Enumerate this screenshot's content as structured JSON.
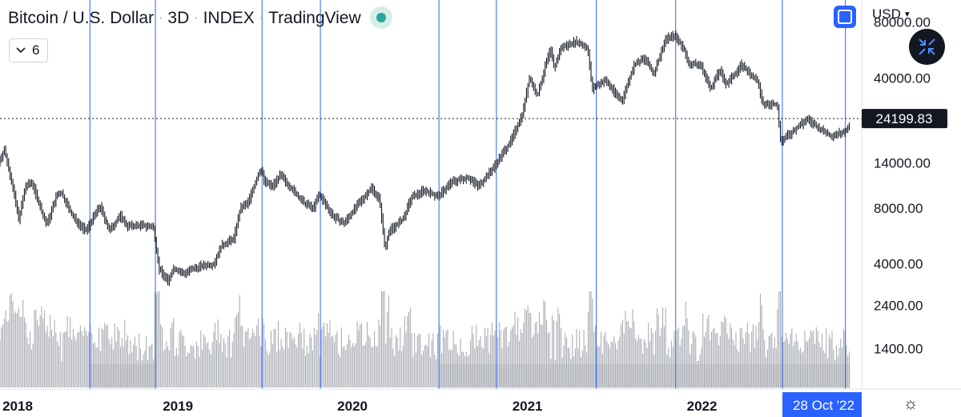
{
  "header": {
    "symbol": "Bitcoin / U.S. Dollar",
    "interval": "3D",
    "exchange": "INDEX",
    "source": "TradingView",
    "separator": "·"
  },
  "indicator_toggle": {
    "count": "6"
  },
  "currency": {
    "label": "USD"
  },
  "icons": {
    "chevron": "chevron-down-icon",
    "market_status": "live-dot-icon",
    "layout": "square-icon",
    "collapse": "collapse-arrows-icon",
    "settings": "settings-sun-icon"
  },
  "colors": {
    "candles": "#131722",
    "volume": "#a3a6ad",
    "volume_band": "#e6e7ea",
    "vertical_lines": "#2962ff",
    "price_line": "#131722",
    "price_label_bg": "#131722",
    "date_label_bg": "#2962ff"
  },
  "chart_data": {
    "type": "line",
    "title": "Bitcoin / U.S. Dollar",
    "xlabel": "",
    "ylabel": "",
    "y_scale": "log",
    "ylim": [
      850,
      105000
    ],
    "x_range": [
      "2017-12-25",
      "2022-12-01"
    ],
    "x_ticks": [
      {
        "date": "2018-01-01",
        "label": "2018"
      },
      {
        "date": "2019-01-01",
        "label": "2019"
      },
      {
        "date": "2020-01-01",
        "label": "2020"
      },
      {
        "date": "2021-01-01",
        "label": "2021"
      },
      {
        "date": "2022-01-01",
        "label": "2022"
      }
    ],
    "y_ticks": [
      {
        "value": 80000,
        "label": "80000.00"
      },
      {
        "value": 40000,
        "label": "40000.00"
      },
      {
        "value": 14000,
        "label": "14000.00"
      },
      {
        "value": 8000,
        "label": "8000.00"
      },
      {
        "value": 4000,
        "label": "4000.00"
      },
      {
        "value": 2400,
        "label": "2400.00"
      },
      {
        "value": 1400,
        "label": "1400.00"
      }
    ],
    "last_price": {
      "value": 24199.83,
      "label": "24199.83"
    },
    "crosshair_date_label": "28 Oct '22",
    "vertical_markers": [
      "2018-07-01",
      "2018-11-15",
      "2019-06-26",
      "2019-10-26",
      "2020-06-30",
      "2020-10-28",
      "2021-05-25",
      "2021-11-07",
      "2022-06-18",
      "2022-10-28"
    ],
    "series": [
      {
        "name": "Bitcoin / U.S. Dollar",
        "points": [
          [
            "2017-12-25",
            14000
          ],
          [
            "2018-01-06",
            16500
          ],
          [
            "2018-01-20",
            11500
          ],
          [
            "2018-02-05",
            7000
          ],
          [
            "2018-02-20",
            10500
          ],
          [
            "2018-03-05",
            11000
          ],
          [
            "2018-03-30",
            7000
          ],
          [
            "2018-04-06",
            6600
          ],
          [
            "2018-04-25",
            9300
          ],
          [
            "2018-05-05",
            9700
          ],
          [
            "2018-05-29",
            7200
          ],
          [
            "2018-06-25",
            6000
          ],
          [
            "2018-07-25",
            8200
          ],
          [
            "2018-08-14",
            6000
          ],
          [
            "2018-09-05",
            7300
          ],
          [
            "2018-09-20",
            6400
          ],
          [
            "2018-10-20",
            6450
          ],
          [
            "2018-11-14",
            6300
          ],
          [
            "2018-11-25",
            3800
          ],
          [
            "2018-12-15",
            3200
          ],
          [
            "2018-12-25",
            3800
          ],
          [
            "2019-01-15",
            3550
          ],
          [
            "2019-02-20",
            3900
          ],
          [
            "2019-03-20",
            4000
          ],
          [
            "2019-04-05",
            5000
          ],
          [
            "2019-05-01",
            5500
          ],
          [
            "2019-05-15",
            8000
          ],
          [
            "2019-05-30",
            8500
          ],
          [
            "2019-06-26",
            13000
          ],
          [
            "2019-07-05",
            11000
          ],
          [
            "2019-07-20",
            10500
          ],
          [
            "2019-08-06",
            12000
          ],
          [
            "2019-09-01",
            10000
          ],
          [
            "2019-09-24",
            8500
          ],
          [
            "2019-10-15",
            8000
          ],
          [
            "2019-10-26",
            9500
          ],
          [
            "2019-11-25",
            7200
          ],
          [
            "2019-12-17",
            6600
          ],
          [
            "2020-01-10",
            8000
          ],
          [
            "2020-02-13",
            10300
          ],
          [
            "2020-03-01",
            8800
          ],
          [
            "2020-03-12",
            4800
          ],
          [
            "2020-03-20",
            6000
          ],
          [
            "2020-04-20",
            7000
          ],
          [
            "2020-05-05",
            9000
          ],
          [
            "2020-06-01",
            10000
          ],
          [
            "2020-07-01",
            9200
          ],
          [
            "2020-07-28",
            11000
          ],
          [
            "2020-09-01",
            11700
          ],
          [
            "2020-09-24",
            10500
          ],
          [
            "2020-10-21",
            12800
          ],
          [
            "2020-11-15",
            16000
          ],
          [
            "2020-12-01",
            18500
          ],
          [
            "2020-12-25",
            26000
          ],
          [
            "2021-01-08",
            40000
          ],
          [
            "2021-01-25",
            32000
          ],
          [
            "2021-02-10",
            46000
          ],
          [
            "2021-02-21",
            57000
          ],
          [
            "2021-03-01",
            45000
          ],
          [
            "2021-03-15",
            58000
          ],
          [
            "2021-04-14",
            63000
          ],
          [
            "2021-05-10",
            58000
          ],
          [
            "2021-05-19",
            35000
          ],
          [
            "2021-06-15",
            39000
          ],
          [
            "2021-07-20",
            30000
          ],
          [
            "2021-08-15",
            47000
          ],
          [
            "2021-09-06",
            51000
          ],
          [
            "2021-09-25",
            42000
          ],
          [
            "2021-10-20",
            65000
          ],
          [
            "2021-11-08",
            68000
          ],
          [
            "2021-11-28",
            57000
          ],
          [
            "2021-12-05",
            48000
          ],
          [
            "2022-01-01",
            47000
          ],
          [
            "2022-01-22",
            35000
          ],
          [
            "2022-02-10",
            44000
          ],
          [
            "2022-02-24",
            37000
          ],
          [
            "2022-03-28",
            47000
          ],
          [
            "2022-05-01",
            38000
          ],
          [
            "2022-05-10",
            29000
          ],
          [
            "2022-06-10",
            29000
          ],
          [
            "2022-06-18",
            18000
          ],
          [
            "2022-07-01",
            19500
          ],
          [
            "2022-08-12",
            24000
          ],
          [
            "2022-09-10",
            21000
          ],
          [
            "2022-10-01",
            19500
          ],
          [
            "2022-10-28",
            20700
          ],
          [
            "2022-11-07",
            21500
          ]
        ]
      }
    ]
  }
}
